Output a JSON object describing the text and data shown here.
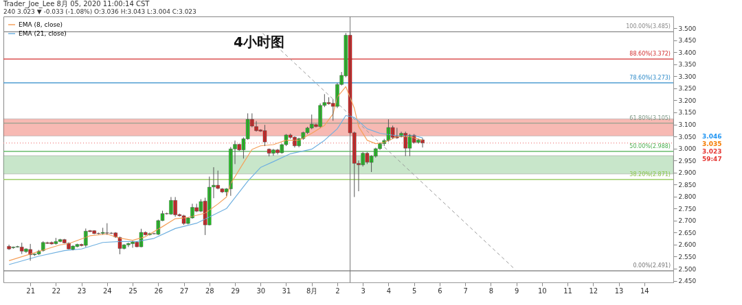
{
  "chart_data": {
    "type": "candlestick",
    "title": "4小时图",
    "annotations": [
      "Trader_Joe_Lee 8月 05, 2020 11:00:14 CST",
      "240 3.023 ▼ -0.033 (-1.08%) O:3.036 H:3.043 L:3.004 C:3.023",
      "3.046",
      "3.035",
      "3.023",
      "59:47"
    ],
    "x": [
      "2020-07-20T04:00",
      "2020-07-20T08:00",
      "2020-07-20T12:00",
      "2020-07-20T16:00",
      "2020-07-20T20:00",
      "2020-07-21T00:00",
      "2020-07-21T04:00",
      "2020-07-21T08:00",
      "2020-07-21T12:00",
      "2020-07-21T16:00",
      "2020-07-21T20:00",
      "2020-07-22T00:00",
      "2020-07-22T04:00",
      "2020-07-22T08:00",
      "2020-07-22T12:00",
      "2020-07-22T16:00",
      "2020-07-22T20:00",
      "2020-07-23T00:00",
      "2020-07-23T04:00",
      "2020-07-23T08:00",
      "2020-07-23T12:00",
      "2020-07-23T16:00",
      "2020-07-23T20:00",
      "2020-07-24T00:00",
      "2020-07-24T04:00",
      "2020-07-24T08:00",
      "2020-07-24T12:00",
      "2020-07-24T16:00",
      "2020-07-24T20:00",
      "2020-07-25T00:00",
      "2020-07-25T04:00",
      "2020-07-25T08:00",
      "2020-07-25T12:00",
      "2020-07-25T16:00",
      "2020-07-25T20:00",
      "2020-07-26T00:00",
      "2020-07-26T04:00",
      "2020-07-26T08:00",
      "2020-07-26T12:00",
      "2020-07-26T16:00",
      "2020-07-26T20:00",
      "2020-07-27T00:00",
      "2020-07-27T04:00",
      "2020-07-27T08:00",
      "2020-07-27T12:00",
      "2020-07-27T16:00",
      "2020-07-27T20:00",
      "2020-07-28T00:00",
      "2020-07-28T04:00",
      "2020-07-28T08:00",
      "2020-07-28T12:00",
      "2020-07-28T16:00",
      "2020-07-28T20:00",
      "2020-07-29T00:00",
      "2020-07-29T04:00",
      "2020-07-29T08:00",
      "2020-07-29T12:00",
      "2020-07-29T16:00",
      "2020-07-29T20:00",
      "2020-07-30T00:00",
      "2020-07-30T04:00",
      "2020-07-30T08:00",
      "2020-07-30T12:00",
      "2020-07-30T16:00",
      "2020-07-30T20:00",
      "2020-07-31T00:00",
      "2020-07-31T04:00",
      "2020-07-31T08:00",
      "2020-07-31T12:00",
      "2020-07-31T16:00",
      "2020-07-31T20:00",
      "2020-08-01T00:00",
      "2020-08-01T04:00",
      "2020-08-01T08:00",
      "2020-08-01T12:00",
      "2020-08-01T16:00",
      "2020-08-01T20:00",
      "2020-08-02T00:00",
      "2020-08-02T04:00",
      "2020-08-02T08:00",
      "2020-08-02T12:00",
      "2020-08-02T16:00",
      "2020-08-02T20:00",
      "2020-08-03T00:00",
      "2020-08-03T04:00",
      "2020-08-03T08:00",
      "2020-08-03T12:00",
      "2020-08-03T16:00",
      "2020-08-03T20:00",
      "2020-08-04T00:00",
      "2020-08-04T04:00",
      "2020-08-04T08:00",
      "2020-08-04T12:00",
      "2020-08-04T16:00",
      "2020-08-04T20:00",
      "2020-08-05T00:00",
      "2020-08-05T04:00",
      "2020-08-05T08:00"
    ],
    "ohlc": [
      [
        2.593,
        2.6,
        2.578,
        2.582
      ],
      [
        2.587,
        2.592,
        2.583,
        2.59
      ],
      [
        2.59,
        2.595,
        2.588,
        2.592
      ],
      [
        2.59,
        2.608,
        2.561,
        2.573
      ],
      [
        2.571,
        2.585,
        2.566,
        2.582
      ],
      [
        2.58,
        2.603,
        2.533,
        2.558
      ],
      [
        2.558,
        2.563,
        2.553,
        2.561
      ],
      [
        2.561,
        2.578,
        2.557,
        2.573
      ],
      [
        2.575,
        2.614,
        2.571,
        2.609
      ],
      [
        2.608,
        2.612,
        2.603,
        2.605
      ],
      [
        2.609,
        2.613,
        2.6,
        2.603
      ],
      [
        2.604,
        2.628,
        2.6,
        2.613
      ],
      [
        2.613,
        2.624,
        2.61,
        2.621
      ],
      [
        2.621,
        2.624,
        2.605,
        2.607
      ],
      [
        2.606,
        2.609,
        2.58,
        2.582
      ],
      [
        2.58,
        2.597,
        2.576,
        2.594
      ],
      [
        2.592,
        2.604,
        2.589,
        2.601
      ],
      [
        2.601,
        2.604,
        2.593,
        2.596
      ],
      [
        2.597,
        2.667,
        2.59,
        2.656
      ],
      [
        2.658,
        2.661,
        2.652,
        2.654
      ],
      [
        2.658,
        2.66,
        2.644,
        2.646
      ],
      [
        2.647,
        2.65,
        2.643,
        2.646
      ],
      [
        2.647,
        2.67,
        2.642,
        2.651
      ],
      [
        2.649,
        2.689,
        2.641,
        2.648
      ],
      [
        2.648,
        2.652,
        2.644,
        2.647
      ],
      [
        2.649,
        2.652,
        2.628,
        2.632
      ],
      [
        2.63,
        2.633,
        2.56,
        2.584
      ],
      [
        2.584,
        2.602,
        2.58,
        2.599
      ],
      [
        2.599,
        2.608,
        2.59,
        2.605
      ],
      [
        2.604,
        2.615,
        2.587,
        2.611
      ],
      [
        2.61,
        2.613,
        2.589,
        2.591
      ],
      [
        2.591,
        2.666,
        2.589,
        2.651
      ],
      [
        2.651,
        2.655,
        2.638,
        2.641
      ],
      [
        2.641,
        2.65,
        2.638,
        2.646
      ],
      [
        2.646,
        2.649,
        2.643,
        2.645
      ],
      [
        2.643,
        2.704,
        2.64,
        2.7
      ],
      [
        2.7,
        2.741,
        2.698,
        2.729
      ],
      [
        2.729,
        2.733,
        2.725,
        2.728
      ],
      [
        2.727,
        2.798,
        2.724,
        2.784
      ],
      [
        2.784,
        2.798,
        2.716,
        2.724
      ],
      [
        2.725,
        2.729,
        2.717,
        2.72
      ],
      [
        2.72,
        2.724,
        2.682,
        2.688
      ],
      [
        2.688,
        2.714,
        2.684,
        2.711
      ],
      [
        2.711,
        2.77,
        2.708,
        2.755
      ],
      [
        2.754,
        2.77,
        2.735,
        2.739
      ],
      [
        2.739,
        2.789,
        2.735,
        2.779
      ],
      [
        2.781,
        2.795,
        2.64,
        2.682
      ],
      [
        2.682,
        2.883,
        2.68,
        2.839
      ],
      [
        2.84,
        2.922,
        2.793,
        2.847
      ],
      [
        2.847,
        2.908,
        2.83,
        2.834
      ],
      [
        2.832,
        2.835,
        2.815,
        2.819
      ],
      [
        2.819,
        2.835,
        2.803,
        2.832
      ],
      [
        2.832,
        3.006,
        2.803,
        2.998
      ],
      [
        2.998,
        3.033,
        2.935,
        3.017
      ],
      [
        3.017,
        3.02,
        2.99,
        2.994
      ],
      [
        2.994,
        3.046,
        2.958,
        3.04
      ],
      [
        3.04,
        3.146,
        3.036,
        3.121
      ],
      [
        3.121,
        3.146,
        3.088,
        3.093
      ],
      [
        3.091,
        3.114,
        3.07,
        3.074
      ],
      [
        3.077,
        3.08,
        3.069,
        3.072
      ],
      [
        3.074,
        3.098,
        3.01,
        3.027
      ],
      [
        2.997,
        3.0,
        2.967,
        2.98
      ],
      [
        2.98,
        2.998,
        2.97,
        2.994
      ],
      [
        2.994,
        2.998,
        2.975,
        2.982
      ],
      [
        2.982,
        3.02,
        2.978,
        3.016
      ],
      [
        3.016,
        3.06,
        3.01,
        3.056
      ],
      [
        3.056,
        3.062,
        3.04,
        3.046
      ],
      [
        3.047,
        3.05,
        3.004,
        3.011
      ],
      [
        3.011,
        3.045,
        3.005,
        3.041
      ],
      [
        3.041,
        3.07,
        3.036,
        3.066
      ],
      [
        3.066,
        3.09,
        3.06,
        3.085
      ],
      [
        3.085,
        3.141,
        3.08,
        3.101
      ],
      [
        3.099,
        3.103,
        3.088,
        3.091
      ],
      [
        3.091,
        3.187,
        3.086,
        3.179
      ],
      [
        3.179,
        3.226,
        3.172,
        3.191
      ],
      [
        3.191,
        3.213,
        3.182,
        3.186
      ],
      [
        3.188,
        3.205,
        3.115,
        3.175
      ],
      [
        3.175,
        3.272,
        3.168,
        3.266
      ],
      [
        3.266,
        3.318,
        3.262,
        3.304
      ],
      [
        3.302,
        3.48,
        3.296,
        3.471
      ],
      [
        3.471,
        3.485,
        3.06,
        3.065
      ],
      [
        3.065,
        3.07,
        2.798,
        2.938
      ],
      [
        2.938,
        2.95,
        2.822,
        2.932
      ],
      [
        2.932,
        2.985,
        2.925,
        2.98
      ],
      [
        2.98,
        2.985,
        2.935,
        2.943
      ],
      [
        2.942,
        2.972,
        2.902,
        2.968
      ],
      [
        2.968,
        3.003,
        2.962,
        2.999
      ],
      [
        2.999,
        3.024,
        2.994,
        3.02
      ],
      [
        3.02,
        3.04,
        3.01,
        3.033
      ],
      [
        3.033,
        3.121,
        3.028,
        3.087
      ],
      [
        3.087,
        3.095,
        3.04,
        3.046
      ],
      [
        3.051,
        3.086,
        3.04,
        3.044
      ],
      [
        3.051,
        3.07,
        3.046,
        3.063
      ],
      [
        3.063,
        3.07,
        2.968,
        3.001
      ],
      [
        3.001,
        3.06,
        2.968,
        3.055
      ],
      [
        3.055,
        3.06,
        3.02,
        3.025
      ],
      [
        3.025,
        3.04,
        3.02,
        3.035
      ],
      [
        3.036,
        3.043,
        3.004,
        3.023
      ]
    ],
    "series": [
      {
        "name": "EMA (8, close)",
        "type": "line",
        "color": "#f5a05a",
        "x": [
          "2020-07-20T04:00",
          "2020-07-21T00:00",
          "2020-07-22T04:00",
          "2020-07-22T12:00",
          "2020-07-23T08:00",
          "2020-07-24T00:00",
          "2020-07-24T12:00",
          "2020-07-25T00:00",
          "2020-07-25T12:00",
          "2020-07-26T04:00",
          "2020-07-26T16:00",
          "2020-07-27T04:00",
          "2020-07-27T20:00",
          "2020-07-28T08:00",
          "2020-07-28T16:00",
          "2020-07-28T20:00",
          "2020-07-29T08:00",
          "2020-07-29T16:00",
          "2020-07-30T00:00",
          "2020-07-30T12:00",
          "2020-07-31T00:00",
          "2020-07-31T12:00",
          "2020-08-01T00:00",
          "2020-08-01T12:00",
          "2020-08-01T20:00",
          "2020-08-02T00:00",
          "2020-08-02T08:00",
          "2020-08-02T16:00",
          "2020-08-02T20:00",
          "2020-08-03T04:00",
          "2020-08-03T12:00",
          "2020-08-03T20:00",
          "2020-08-04T08:00",
          "2020-08-04T20:00",
          "2020-08-05T08:00"
        ],
        "values": [
          2.533,
          2.561,
          2.599,
          2.604,
          2.637,
          2.644,
          2.627,
          2.618,
          2.633,
          2.675,
          2.708,
          2.713,
          2.731,
          2.769,
          2.798,
          2.854,
          2.94,
          2.996,
          3.011,
          3.016,
          3.034,
          3.034,
          3.063,
          3.096,
          3.143,
          3.214,
          3.257,
          3.167,
          3.091,
          3.034,
          3.02,
          3.025,
          3.049,
          3.049,
          3.034
        ]
      },
      {
        "name": "EMA (21, close)",
        "type": "line",
        "color": "#6fb0e0",
        "x": [
          "2020-07-20T04:00",
          "2020-07-21T08:00",
          "2020-07-22T08:00",
          "2020-07-23T00:00",
          "2020-07-23T20:00",
          "2020-07-24T12:00",
          "2020-07-25T04:00",
          "2020-07-25T20:00",
          "2020-07-26T16:00",
          "2020-07-27T12:00",
          "2020-07-28T16:00",
          "2020-07-29T12:00",
          "2020-07-30T00:00",
          "2020-07-30T12:00",
          "2020-07-31T04:00",
          "2020-08-01T00:00",
          "2020-08-01T12:00",
          "2020-08-02T00:00",
          "2020-08-02T08:00",
          "2020-08-02T16:00",
          "2020-08-03T04:00",
          "2020-08-03T16:00",
          "2020-08-04T08:00",
          "2020-08-05T00:00",
          "2020-08-05T08:00"
        ],
        "values": [
          2.517,
          2.552,
          2.575,
          2.582,
          2.609,
          2.613,
          2.613,
          2.626,
          2.667,
          2.689,
          2.75,
          2.864,
          2.921,
          2.945,
          2.978,
          2.997,
          3.034,
          3.082,
          3.137,
          3.129,
          3.082,
          3.063,
          3.053,
          3.053,
          3.044
        ]
      },
      {
        "type": "line",
        "color": "#999999",
        "line_style": "dashed",
        "x": [
          "2020-07-30T02:00",
          "2020-08-08T23:00"
        ],
        "values": [
          3.479,
          2.496
        ]
      }
    ],
    "ref_lines": [
      {
        "axis": "y",
        "value": 3.485,
        "label": "100.00%(3.485)",
        "color": "#888888"
      },
      {
        "axis": "y",
        "value": 3.372,
        "label": "88.60%(3.372)",
        "color": "#d32f2f"
      },
      {
        "axis": "y",
        "value": 3.273,
        "label": "78.60%(3.273)",
        "color": "#2e8bc9"
      },
      {
        "axis": "y",
        "value": 3.105,
        "label": "61.80%(3.105)",
        "color": "#7f9a87"
      },
      {
        "axis": "y",
        "value": 2.988,
        "label": "50.00%(2.988)",
        "color": "#4caf50"
      },
      {
        "axis": "y",
        "value": 2.871,
        "label": "38.20%(2.871)",
        "color": "#8bc34a"
      },
      {
        "axis": "y",
        "value": 2.491,
        "label": "0.00%(2.491)",
        "color": "#777777"
      },
      {
        "axis": "y",
        "value": 3.023,
        "color": "#f08080",
        "line_style": "dotted"
      },
      {
        "axis": "x",
        "value": "2020-08-02T12:00",
        "color": "#777777"
      }
    ],
    "bands": [
      {
        "axis": "y",
        "from": 3.052,
        "to": 3.123,
        "color": "#f28b82"
      },
      {
        "axis": "y",
        "from": 2.894,
        "to": 2.97,
        "color": "#a5d6a7"
      }
    ],
    "xlim": [
      "2020-07-20T02:00",
      "2020-08-15T00:00"
    ],
    "xticks": [
      {
        "value": "2020-07-21",
        "label": "21"
      },
      {
        "value": "2020-07-22",
        "label": "22"
      },
      {
        "value": "2020-07-23",
        "label": "23"
      },
      {
        "value": "2020-07-24",
        "label": "24"
      },
      {
        "value": "2020-07-25",
        "label": "25"
      },
      {
        "value": "2020-07-26",
        "label": "26"
      },
      {
        "value": "2020-07-27",
        "label": "27"
      },
      {
        "value": "2020-07-28",
        "label": "28"
      },
      {
        "value": "2020-07-29",
        "label": "29"
      },
      {
        "value": "2020-07-30",
        "label": "30"
      },
      {
        "value": "2020-07-31",
        "label": "31"
      },
      {
        "value": "2020-08-01",
        "label": "8月"
      },
      {
        "value": "2020-08-02",
        "label": "2"
      },
      {
        "value": "2020-08-03",
        "label": "3"
      },
      {
        "value": "2020-08-04",
        "label": "4"
      },
      {
        "value": "2020-08-05",
        "label": "5"
      },
      {
        "value": "2020-08-06",
        "label": "6"
      },
      {
        "value": "2020-08-07",
        "label": "7"
      },
      {
        "value": "2020-08-08",
        "label": "8"
      },
      {
        "value": "2020-08-09",
        "label": "9"
      },
      {
        "value": "2020-08-10",
        "label": "10"
      },
      {
        "value": "2020-08-11",
        "label": "11"
      },
      {
        "value": "2020-08-12",
        "label": "12"
      },
      {
        "value": "2020-08-13",
        "label": "13"
      },
      {
        "value": "2020-08-14",
        "label": "14"
      }
    ],
    "ylim": [
      2.443,
      3.549
    ],
    "yticks": [
      {
        "value": 2.45,
        "label": "2.450"
      },
      {
        "value": 2.5,
        "label": "2.500"
      },
      {
        "value": 2.55,
        "label": "2.550"
      },
      {
        "value": 2.6,
        "label": "2.600"
      },
      {
        "value": 2.65,
        "label": "2.650"
      },
      {
        "value": 2.7,
        "label": "2.700"
      },
      {
        "value": 2.75,
        "label": "2.750"
      },
      {
        "value": 2.8,
        "label": "2.800"
      },
      {
        "value": 2.85,
        "label": "2.850"
      },
      {
        "value": 2.9,
        "label": "2.900"
      },
      {
        "value": 2.95,
        "label": "2.950"
      },
      {
        "value": 3.0,
        "label": "3.000"
      },
      {
        "value": 3.05,
        "label": "3.050"
      },
      {
        "value": 3.1,
        "label": "3.100"
      },
      {
        "value": 3.15,
        "label": "3.150"
      },
      {
        "value": 3.2,
        "label": "3.200"
      },
      {
        "value": 3.25,
        "label": "3.250"
      },
      {
        "value": 3.3,
        "label": "3.300"
      },
      {
        "value": 3.35,
        "label": "3.350"
      },
      {
        "value": 3.4,
        "label": "3.400"
      },
      {
        "value": 3.45,
        "label": "3.450"
      },
      {
        "value": 3.5,
        "label": "3.500"
      }
    ],
    "legend": "top left"
  }
}
